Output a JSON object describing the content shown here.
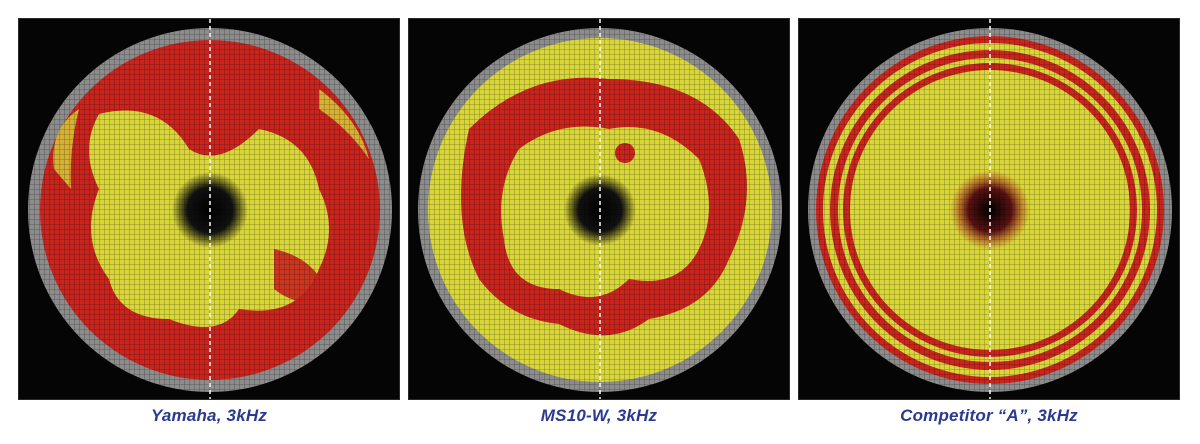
{
  "panels": [
    {
      "caption": "Yamaha, 3kHz"
    },
    {
      "caption": "MS10-W, 3kHz"
    },
    {
      "caption": "Competitor “A”, 3kHz"
    }
  ],
  "colors": {
    "background": "#050505",
    "outer_mesh": "#8c8c8c",
    "red": "#c8251e",
    "yellow": "#d9d63a",
    "center": "#0a0a0a",
    "caption": "#2b3a8f"
  }
}
